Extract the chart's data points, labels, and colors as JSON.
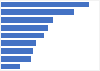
{
  "values": [
    260,
    215,
    155,
    140,
    128,
    103,
    96,
    90,
    57
  ],
  "bar_color": "#4472c4",
  "background_color": "#f2f2f2",
  "plot_background": "#ffffff",
  "grid_color": "#c8c8c8",
  "bar_height": 0.75,
  "xlim_max": 290
}
